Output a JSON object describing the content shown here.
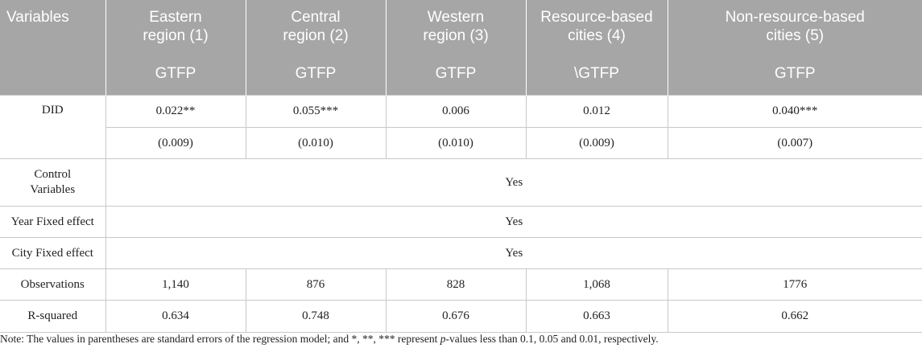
{
  "header": {
    "variables": "Variables",
    "columns": [
      {
        "line1": "Eastern",
        "line2": "region (1)",
        "dep": "GTFP"
      },
      {
        "line1": "Central",
        "line2": "region (2)",
        "dep": "GTFP"
      },
      {
        "line1": "Western",
        "line2": "region (3)",
        "dep": "GTFP"
      },
      {
        "line1": "Resource-based",
        "line2": "cities (4)",
        "dep": "\\GTFP"
      },
      {
        "line1": "Non-resource-based",
        "line2": "cities (5)",
        "dep": "GTFP"
      }
    ]
  },
  "rows": {
    "did": {
      "label": "DID",
      "coef": [
        "0.022**",
        "0.055***",
        "0.006",
        "0.012",
        "0.040***"
      ],
      "se": [
        "(0.009)",
        "(0.010)",
        "(0.010)",
        "(0.009)",
        "(0.007)"
      ]
    },
    "control": {
      "label_line1": "Control",
      "label_line2": "Variables",
      "value": "Yes"
    },
    "year_fe": {
      "label": "Year Fixed effect",
      "value": "Yes"
    },
    "city_fe": {
      "label": "City Fixed effect",
      "value": "Yes"
    },
    "observations": {
      "label": "Observations",
      "values": [
        "1,140",
        "876",
        "828",
        "1,068",
        "1776"
      ]
    },
    "r_squared": {
      "label": "R-squared",
      "values": [
        "0.634",
        "0.748",
        "0.676",
        "0.663",
        "0.662"
      ]
    }
  },
  "note": {
    "before": "Note: The values in parentheses are standard errors of the regression model; and *, **, *** represent ",
    "italic": "p",
    "after": "-values less than 0.1, 0.05 and 0.01, respectively."
  }
}
